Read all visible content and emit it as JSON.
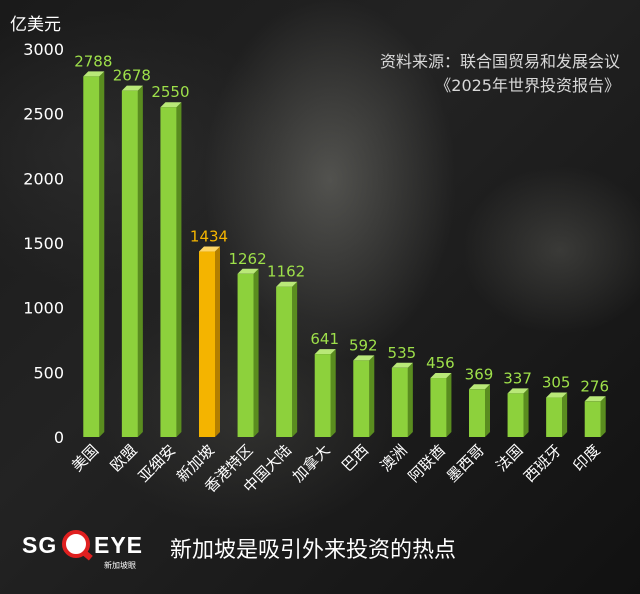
{
  "chart_data": {
    "type": "bar",
    "ylabel": "亿美元",
    "ylim": [
      0,
      3000
    ],
    "yticks": [
      0,
      500,
      1000,
      1500,
      2000,
      2500,
      3000
    ],
    "categories": [
      "美国",
      "欧盟",
      "亚细安",
      "新加坡",
      "香港特区",
      "中国大陆",
      "加拿大",
      "巴西",
      "澳洲",
      "阿联酋",
      "墨西哥",
      "法国",
      "西班牙",
      "印度"
    ],
    "values": [
      2788,
      2678,
      2550,
      1434,
      1262,
      1162,
      641,
      592,
      535,
      456,
      369,
      337,
      305,
      276
    ],
    "highlight_index": 3,
    "colors": {
      "bar": "#8dd13c",
      "bar_side": "#5a8d1f",
      "bar_top": "#b9e878",
      "highlight": "#f4b400",
      "highlight_side": "#b37f00",
      "highlight_top": "#ffd666",
      "label": "#9ee04a",
      "highlight_label": "#f4b400"
    },
    "grid": false,
    "legend": "none"
  },
  "source": {
    "line1": "资料来源：联合国贸易和发展会议",
    "line2": "《2025年世界投资报告》"
  },
  "footer": {
    "logo_left": "SG",
    "logo_right": "EYE",
    "logo_sub": "新加坡眼",
    "tagline": "新加坡是吸引外来投资的热点"
  }
}
